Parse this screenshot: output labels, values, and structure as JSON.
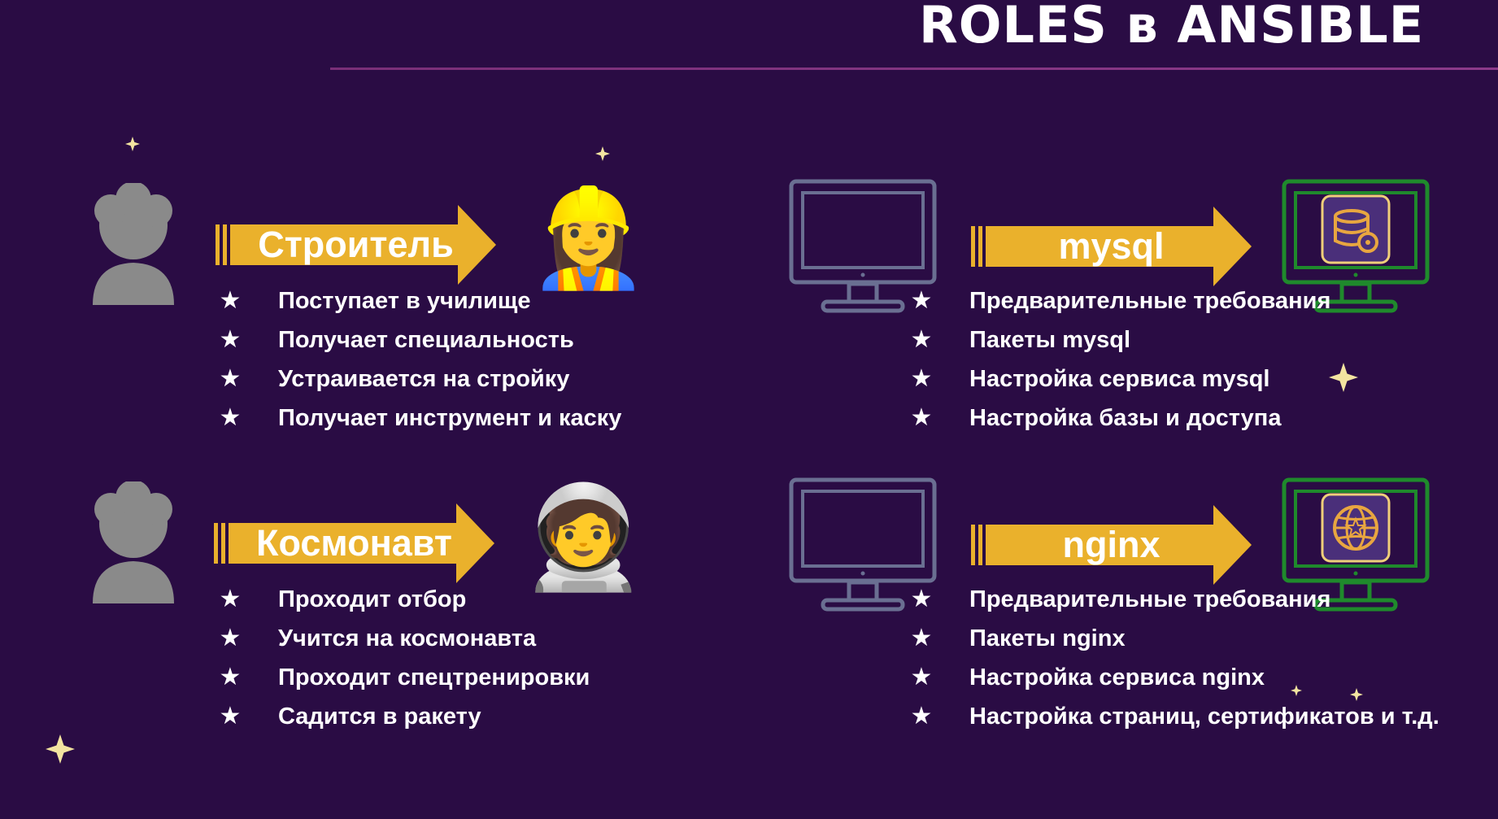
{
  "title": "ROLES в ANSIBLE",
  "bullet_glyph": "★",
  "colors": {
    "background": "#2a0c44",
    "arrow": "#eab12c",
    "monitor_outline": "#6a6f92",
    "monitor_green": "#1f8a2c",
    "silhouette": "#8a8a8a",
    "title_line": "#8c3a8a",
    "deco_star": "#f3e4a0"
  },
  "people": [
    {
      "arrow_label": "Строитель",
      "emoji": "👷‍♀️",
      "items": [
        "Поступает в училище",
        "Получает специальность",
        "Устраивается на стройку",
        "Получает инструмент и каску"
      ]
    },
    {
      "arrow_label": "Космонавт",
      "emoji": "🧑‍🚀",
      "items": [
        "Проходит отбор",
        "Учится на космонавта",
        "Проходит спецтренировки",
        "Садится в ракету"
      ]
    }
  ],
  "servers": [
    {
      "arrow_label": "mysql",
      "icon": "database-gear-icon",
      "items": [
        "Предварительные требования",
        "Пакеты mysql",
        "Настройка сервиса mysql",
        "Настройка базы и доступа"
      ]
    },
    {
      "arrow_label": "nginx",
      "icon": "globe-star-icon",
      "items": [
        "Предварительные требования",
        "Пакеты nginx",
        "Настройка сервиса nginx",
        "Настройка страниц, сертификатов и т.д."
      ]
    }
  ]
}
